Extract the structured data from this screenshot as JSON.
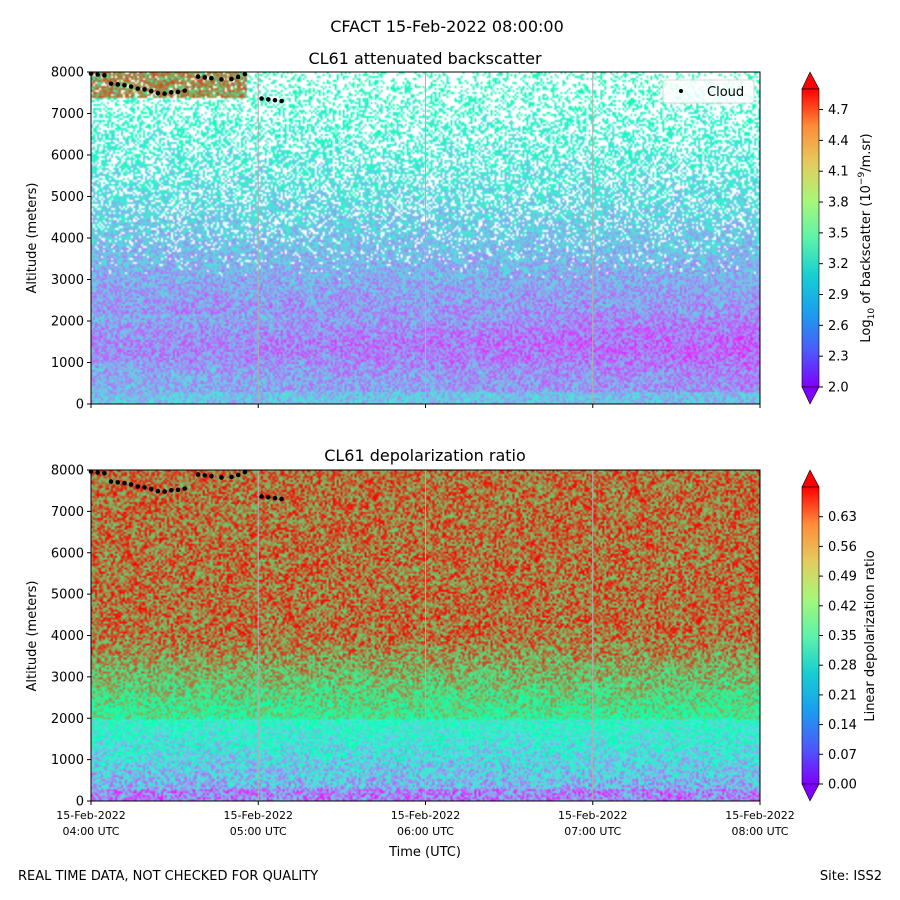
{
  "figure": {
    "suptitle": "CFACT 15-Feb-2022 08:00:00",
    "footer_left": "REAL TIME DATA, NOT CHECKED FOR QUALITY",
    "footer_right": "Site: ISS2"
  },
  "chart_data": [
    {
      "type": "heatmap",
      "title": "CL61 attenuated backscatter",
      "ylabel": "Altitude (meters)",
      "xlabel": "",
      "ylim": [
        0,
        8000
      ],
      "yticks": [
        0,
        1000,
        2000,
        3000,
        4000,
        5000,
        6000,
        7000,
        8000
      ],
      "x_ticks": [
        {
          "line1": "15-Feb-2022",
          "line2": "04:00 UTC"
        },
        {
          "line1": "15-Feb-2022",
          "line2": "05:00 UTC"
        },
        {
          "line1": "15-Feb-2022",
          "line2": "06:00 UTC"
        },
        {
          "line1": "15-Feb-2022",
          "line2": "07:00 UTC"
        },
        {
          "line1": "15-Feb-2022",
          "line2": "08:00 UTC"
        }
      ],
      "x_range_hours": [
        4,
        8
      ],
      "colorbar": {
        "label_prefix": "Log",
        "label_sub": "10",
        "label_mid": " of backscatter (10",
        "label_sup": "−9",
        "label_suffix": "/m.sr)",
        "range": [
          2.0,
          4.9
        ],
        "ticks": [
          "2.0",
          "2.3",
          "2.6",
          "2.9",
          "3.2",
          "3.5",
          "3.8",
          "4.1",
          "4.4",
          "4.7"
        ],
        "colormap": "rainbow"
      },
      "legend": {
        "label": "Cloud",
        "position": "top-right"
      },
      "cloud_points": [
        {
          "t": 4.0,
          "alt": 7960
        },
        {
          "t": 4.04,
          "alt": 7940
        },
        {
          "t": 4.08,
          "alt": 7920
        },
        {
          "t": 4.12,
          "alt": 7720
        },
        {
          "t": 4.16,
          "alt": 7700
        },
        {
          "t": 4.2,
          "alt": 7680
        },
        {
          "t": 4.24,
          "alt": 7650
        },
        {
          "t": 4.28,
          "alt": 7600
        },
        {
          "t": 4.32,
          "alt": 7580
        },
        {
          "t": 4.36,
          "alt": 7540
        },
        {
          "t": 4.4,
          "alt": 7490
        },
        {
          "t": 4.44,
          "alt": 7480
        },
        {
          "t": 4.48,
          "alt": 7510
        },
        {
          "t": 4.52,
          "alt": 7520
        },
        {
          "t": 4.56,
          "alt": 7550
        },
        {
          "t": 4.64,
          "alt": 7890
        },
        {
          "t": 4.68,
          "alt": 7870
        },
        {
          "t": 4.72,
          "alt": 7850
        },
        {
          "t": 4.78,
          "alt": 7820
        },
        {
          "t": 4.84,
          "alt": 7830
        },
        {
          "t": 4.88,
          "alt": 7880
        },
        {
          "t": 4.92,
          "alt": 7950
        },
        {
          "t": 5.02,
          "alt": 7360
        },
        {
          "t": 5.06,
          "alt": 7340
        },
        {
          "t": 5.1,
          "alt": 7320
        },
        {
          "t": 5.14,
          "alt": 7300
        }
      ]
    },
    {
      "type": "heatmap",
      "title": "CL61 depolarization ratio",
      "ylabel": "Altitude (meters)",
      "xlabel": "Time (UTC)",
      "ylim": [
        0,
        8000
      ],
      "yticks": [
        0,
        1000,
        2000,
        3000,
        4000,
        5000,
        6000,
        7000,
        8000
      ],
      "x_ticks": [
        {
          "line1": "15-Feb-2022",
          "line2": "04:00 UTC"
        },
        {
          "line1": "15-Feb-2022",
          "line2": "05:00 UTC"
        },
        {
          "line1": "15-Feb-2022",
          "line2": "06:00 UTC"
        },
        {
          "line1": "15-Feb-2022",
          "line2": "07:00 UTC"
        },
        {
          "line1": "15-Feb-2022",
          "line2": "08:00 UTC"
        }
      ],
      "x_range_hours": [
        4,
        8
      ],
      "colorbar": {
        "label": "Linear depolarization ratio",
        "range": [
          0.0,
          0.7
        ],
        "ticks": [
          "0.00",
          "0.07",
          "0.14",
          "0.21",
          "0.28",
          "0.35",
          "0.42",
          "0.49",
          "0.56",
          "0.63"
        ],
        "colormap": "rainbow"
      },
      "cloud_points": [
        {
          "t": 4.0,
          "alt": 7960
        },
        {
          "t": 4.04,
          "alt": 7940
        },
        {
          "t": 4.08,
          "alt": 7920
        },
        {
          "t": 4.12,
          "alt": 7720
        },
        {
          "t": 4.16,
          "alt": 7700
        },
        {
          "t": 4.2,
          "alt": 7680
        },
        {
          "t": 4.24,
          "alt": 7650
        },
        {
          "t": 4.28,
          "alt": 7600
        },
        {
          "t": 4.32,
          "alt": 7580
        },
        {
          "t": 4.36,
          "alt": 7540
        },
        {
          "t": 4.4,
          "alt": 7490
        },
        {
          "t": 4.44,
          "alt": 7480
        },
        {
          "t": 4.48,
          "alt": 7510
        },
        {
          "t": 4.52,
          "alt": 7520
        },
        {
          "t": 4.56,
          "alt": 7550
        },
        {
          "t": 4.64,
          "alt": 7890
        },
        {
          "t": 4.68,
          "alt": 7870
        },
        {
          "t": 4.72,
          "alt": 7850
        },
        {
          "t": 4.78,
          "alt": 7820
        },
        {
          "t": 4.84,
          "alt": 7830
        },
        {
          "t": 4.88,
          "alt": 7880
        },
        {
          "t": 4.92,
          "alt": 7950
        },
        {
          "t": 5.02,
          "alt": 7360
        },
        {
          "t": 5.06,
          "alt": 7340
        },
        {
          "t": 5.1,
          "alt": 7320
        },
        {
          "t": 5.14,
          "alt": 7300
        }
      ]
    }
  ]
}
